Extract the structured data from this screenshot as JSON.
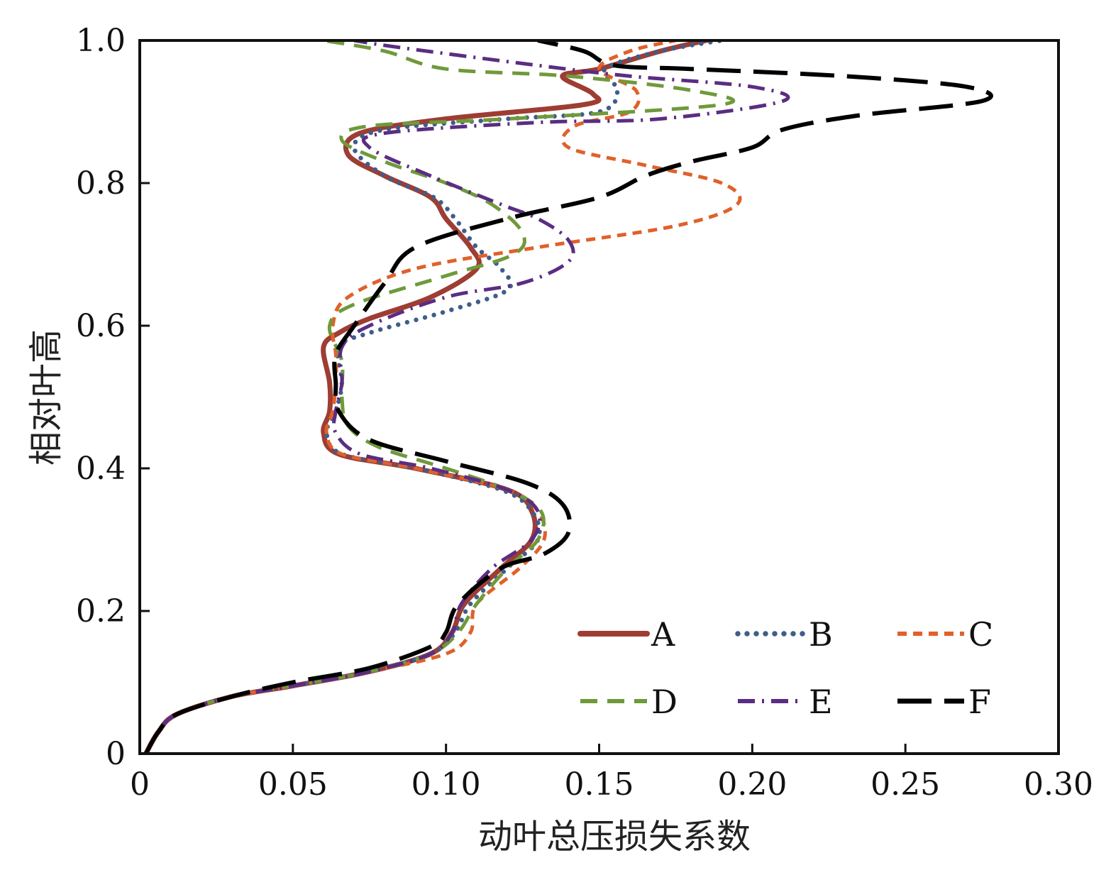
{
  "chart_data": {
    "type": "line",
    "title": "",
    "xlabel": "动叶总压损失系数",
    "ylabel": "相对叶高",
    "xlim": [
      0,
      0.3
    ],
    "ylim": [
      0,
      1.0
    ],
    "x_ticks": [
      0,
      0.05,
      0.1,
      0.15,
      0.2,
      0.25,
      0.3
    ],
    "x_tick_labels": [
      "0",
      "0.05",
      "0.10",
      "0.15",
      "0.20",
      "0.25",
      "0.30"
    ],
    "y_ticks": [
      0,
      0.2,
      0.4,
      0.6,
      0.8,
      1.0
    ],
    "y_tick_labels": [
      "0",
      "0.2",
      "0.4",
      "0.6",
      "0.8",
      "1.0"
    ],
    "grid": false,
    "legend_position": "bottom-right",
    "series": [
      {
        "name": "A",
        "color": "#9e3d33",
        "dash": "solid",
        "points": [
          [
            0.002,
            0.0
          ],
          [
            0.006,
            0.03
          ],
          [
            0.012,
            0.055
          ],
          [
            0.03,
            0.08
          ],
          [
            0.05,
            0.095
          ],
          [
            0.075,
            0.115
          ],
          [
            0.095,
            0.14
          ],
          [
            0.102,
            0.17
          ],
          [
            0.106,
            0.21
          ],
          [
            0.118,
            0.26
          ],
          [
            0.128,
            0.3
          ],
          [
            0.128,
            0.34
          ],
          [
            0.12,
            0.37
          ],
          [
            0.09,
            0.4
          ],
          [
            0.065,
            0.42
          ],
          [
            0.06,
            0.45
          ],
          [
            0.062,
            0.48
          ],
          [
            0.062,
            0.52
          ],
          [
            0.06,
            0.57
          ],
          [
            0.065,
            0.59
          ],
          [
            0.075,
            0.61
          ],
          [
            0.095,
            0.64
          ],
          [
            0.11,
            0.68
          ],
          [
            0.108,
            0.71
          ],
          [
            0.1,
            0.75
          ],
          [
            0.095,
            0.78
          ],
          [
            0.08,
            0.81
          ],
          [
            0.068,
            0.84
          ],
          [
            0.072,
            0.87
          ],
          [
            0.1,
            0.89
          ],
          [
            0.145,
            0.91
          ],
          [
            0.148,
            0.925
          ],
          [
            0.138,
            0.95
          ],
          [
            0.15,
            0.96
          ],
          [
            0.17,
            0.985
          ],
          [
            0.185,
            1.0
          ]
        ]
      },
      {
        "name": "B",
        "color": "#3f5d8a",
        "dash": "dotted",
        "points": [
          [
            0.002,
            0.0
          ],
          [
            0.006,
            0.03
          ],
          [
            0.012,
            0.055
          ],
          [
            0.03,
            0.08
          ],
          [
            0.05,
            0.095
          ],
          [
            0.075,
            0.115
          ],
          [
            0.095,
            0.14
          ],
          [
            0.103,
            0.17
          ],
          [
            0.108,
            0.21
          ],
          [
            0.12,
            0.26
          ],
          [
            0.13,
            0.3
          ],
          [
            0.128,
            0.34
          ],
          [
            0.118,
            0.37
          ],
          [
            0.09,
            0.4
          ],
          [
            0.066,
            0.42
          ],
          [
            0.061,
            0.45
          ],
          [
            0.064,
            0.48
          ],
          [
            0.066,
            0.52
          ],
          [
            0.065,
            0.57
          ],
          [
            0.075,
            0.59
          ],
          [
            0.1,
            0.62
          ],
          [
            0.12,
            0.65
          ],
          [
            0.118,
            0.68
          ],
          [
            0.11,
            0.71
          ],
          [
            0.103,
            0.75
          ],
          [
            0.096,
            0.78
          ],
          [
            0.08,
            0.81
          ],
          [
            0.07,
            0.85
          ],
          [
            0.08,
            0.875
          ],
          [
            0.12,
            0.89
          ],
          [
            0.15,
            0.9
          ],
          [
            0.156,
            0.93
          ],
          [
            0.152,
            0.96
          ],
          [
            0.17,
            0.985
          ],
          [
            0.19,
            1.0
          ]
        ]
      },
      {
        "name": "C",
        "color": "#e0612b",
        "dash": "short-dash",
        "points": [
          [
            0.002,
            0.0
          ],
          [
            0.006,
            0.03
          ],
          [
            0.012,
            0.055
          ],
          [
            0.03,
            0.08
          ],
          [
            0.05,
            0.095
          ],
          [
            0.075,
            0.115
          ],
          [
            0.1,
            0.14
          ],
          [
            0.108,
            0.17
          ],
          [
            0.11,
            0.21
          ],
          [
            0.124,
            0.26
          ],
          [
            0.132,
            0.3
          ],
          [
            0.13,
            0.34
          ],
          [
            0.12,
            0.37
          ],
          [
            0.09,
            0.4
          ],
          [
            0.066,
            0.42
          ],
          [
            0.061,
            0.45
          ],
          [
            0.063,
            0.48
          ],
          [
            0.064,
            0.52
          ],
          [
            0.064,
            0.56
          ],
          [
            0.063,
            0.6
          ],
          [
            0.068,
            0.64
          ],
          [
            0.09,
            0.68
          ],
          [
            0.13,
            0.71
          ],
          [
            0.175,
            0.74
          ],
          [
            0.195,
            0.77
          ],
          [
            0.19,
            0.8
          ],
          [
            0.165,
            0.825
          ],
          [
            0.14,
            0.85
          ],
          [
            0.142,
            0.88
          ],
          [
            0.16,
            0.9
          ],
          [
            0.162,
            0.93
          ],
          [
            0.15,
            0.96
          ],
          [
            0.16,
            0.985
          ],
          [
            0.175,
            1.0
          ]
        ]
      },
      {
        "name": "D",
        "color": "#6f9a3b",
        "dash": "dashed",
        "points": [
          [
            0.002,
            0.0
          ],
          [
            0.006,
            0.03
          ],
          [
            0.012,
            0.055
          ],
          [
            0.03,
            0.08
          ],
          [
            0.05,
            0.095
          ],
          [
            0.075,
            0.115
          ],
          [
            0.095,
            0.14
          ],
          [
            0.104,
            0.17
          ],
          [
            0.11,
            0.21
          ],
          [
            0.12,
            0.26
          ],
          [
            0.13,
            0.3
          ],
          [
            0.131,
            0.34
          ],
          [
            0.12,
            0.37
          ],
          [
            0.1,
            0.4
          ],
          [
            0.078,
            0.43
          ],
          [
            0.068,
            0.46
          ],
          [
            0.066,
            0.5
          ],
          [
            0.066,
            0.55
          ],
          [
            0.062,
            0.6
          ],
          [
            0.07,
            0.63
          ],
          [
            0.1,
            0.67
          ],
          [
            0.122,
            0.7
          ],
          [
            0.125,
            0.73
          ],
          [
            0.115,
            0.77
          ],
          [
            0.1,
            0.8
          ],
          [
            0.08,
            0.83
          ],
          [
            0.066,
            0.86
          ],
          [
            0.075,
            0.88
          ],
          [
            0.12,
            0.89
          ],
          [
            0.19,
            0.91
          ],
          [
            0.18,
            0.93
          ],
          [
            0.14,
            0.95
          ],
          [
            0.1,
            0.96
          ],
          [
            0.08,
            0.985
          ],
          [
            0.06,
            1.0
          ]
        ]
      },
      {
        "name": "E",
        "color": "#5b2d82",
        "dash": "dash-dot",
        "points": [
          [
            0.002,
            0.0
          ],
          [
            0.006,
            0.03
          ],
          [
            0.012,
            0.055
          ],
          [
            0.03,
            0.08
          ],
          [
            0.05,
            0.095
          ],
          [
            0.075,
            0.115
          ],
          [
            0.095,
            0.14
          ],
          [
            0.102,
            0.17
          ],
          [
            0.105,
            0.21
          ],
          [
            0.115,
            0.26
          ],
          [
            0.128,
            0.3
          ],
          [
            0.13,
            0.34
          ],
          [
            0.12,
            0.37
          ],
          [
            0.095,
            0.4
          ],
          [
            0.072,
            0.42
          ],
          [
            0.064,
            0.45
          ],
          [
            0.064,
            0.48
          ],
          [
            0.066,
            0.52
          ],
          [
            0.066,
            0.57
          ],
          [
            0.075,
            0.6
          ],
          [
            0.1,
            0.64
          ],
          [
            0.125,
            0.66
          ],
          [
            0.14,
            0.69
          ],
          [
            0.14,
            0.72
          ],
          [
            0.13,
            0.75
          ],
          [
            0.118,
            0.77
          ],
          [
            0.095,
            0.81
          ],
          [
            0.075,
            0.85
          ],
          [
            0.08,
            0.87
          ],
          [
            0.13,
            0.885
          ],
          [
            0.17,
            0.89
          ],
          [
            0.21,
            0.915
          ],
          [
            0.2,
            0.935
          ],
          [
            0.16,
            0.95
          ],
          [
            0.13,
            0.965
          ],
          [
            0.085,
            0.99
          ],
          [
            0.07,
            1.0
          ]
        ]
      },
      {
        "name": "F",
        "color": "#000000",
        "dash": "long-dash",
        "points": [
          [
            0.002,
            0.0
          ],
          [
            0.006,
            0.03
          ],
          [
            0.012,
            0.055
          ],
          [
            0.03,
            0.08
          ],
          [
            0.05,
            0.1
          ],
          [
            0.075,
            0.12
          ],
          [
            0.095,
            0.15
          ],
          [
            0.1,
            0.17
          ],
          [
            0.104,
            0.21
          ],
          [
            0.118,
            0.26
          ],
          [
            0.132,
            0.28
          ],
          [
            0.14,
            0.31
          ],
          [
            0.138,
            0.35
          ],
          [
            0.126,
            0.38
          ],
          [
            0.1,
            0.41
          ],
          [
            0.075,
            0.44
          ],
          [
            0.065,
            0.48
          ],
          [
            0.064,
            0.52
          ],
          [
            0.064,
            0.56
          ],
          [
            0.07,
            0.6
          ],
          [
            0.08,
            0.66
          ],
          [
            0.09,
            0.71
          ],
          [
            0.12,
            0.75
          ],
          [
            0.15,
            0.78
          ],
          [
            0.165,
            0.81
          ],
          [
            0.18,
            0.83
          ],
          [
            0.2,
            0.85
          ],
          [
            0.21,
            0.875
          ],
          [
            0.235,
            0.895
          ],
          [
            0.275,
            0.915
          ],
          [
            0.27,
            0.935
          ],
          [
            0.23,
            0.95
          ],
          [
            0.18,
            0.96
          ],
          [
            0.155,
            0.965
          ],
          [
            0.145,
            0.985
          ],
          [
            0.13,
            1.0
          ]
        ]
      }
    ]
  }
}
